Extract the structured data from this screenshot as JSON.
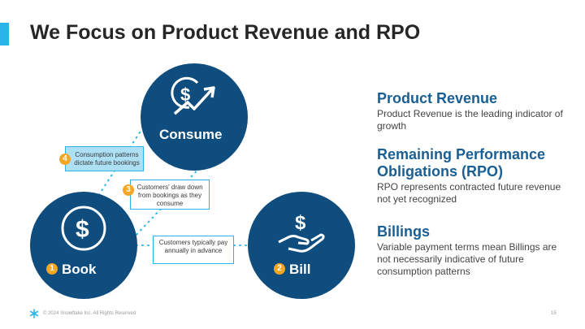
{
  "slide": {
    "title": "We Focus on Product Revenue and RPO",
    "page_number": "15",
    "footer": "© 2024 Snowflake Inc. All Rights Reserved"
  },
  "colors": {
    "accent": "#29b5e8",
    "circle": "#0f4d7e",
    "heading": "#1a5f93",
    "badge": "#f5a623"
  },
  "diagram": {
    "consume": {
      "label": "Consume",
      "icon": "dollar-growth-arrow-icon"
    },
    "book": {
      "label": "Book",
      "number": "1",
      "icon": "dollar-coin-icon"
    },
    "bill": {
      "label": "Bill",
      "number": "2",
      "icon": "dollar-hand-icon"
    },
    "notes": [
      {
        "number": "4",
        "text": "Consumption patterns dictate future bookings"
      },
      {
        "number": "3",
        "text": "Customers' draw down from bookings as they consume"
      },
      {
        "text": "Customers typically pay annually in advance"
      }
    ]
  },
  "sections": [
    {
      "heading": "Product Revenue",
      "text": "Product Revenue is the leading indicator of growth"
    },
    {
      "heading": "Remaining Performance Obligations (RPO)",
      "text": "RPO represents contracted future revenue not yet recognized"
    },
    {
      "heading": "Billings",
      "text": "Variable payment terms mean Billings are not necessarily indicative of future consumption patterns"
    }
  ]
}
